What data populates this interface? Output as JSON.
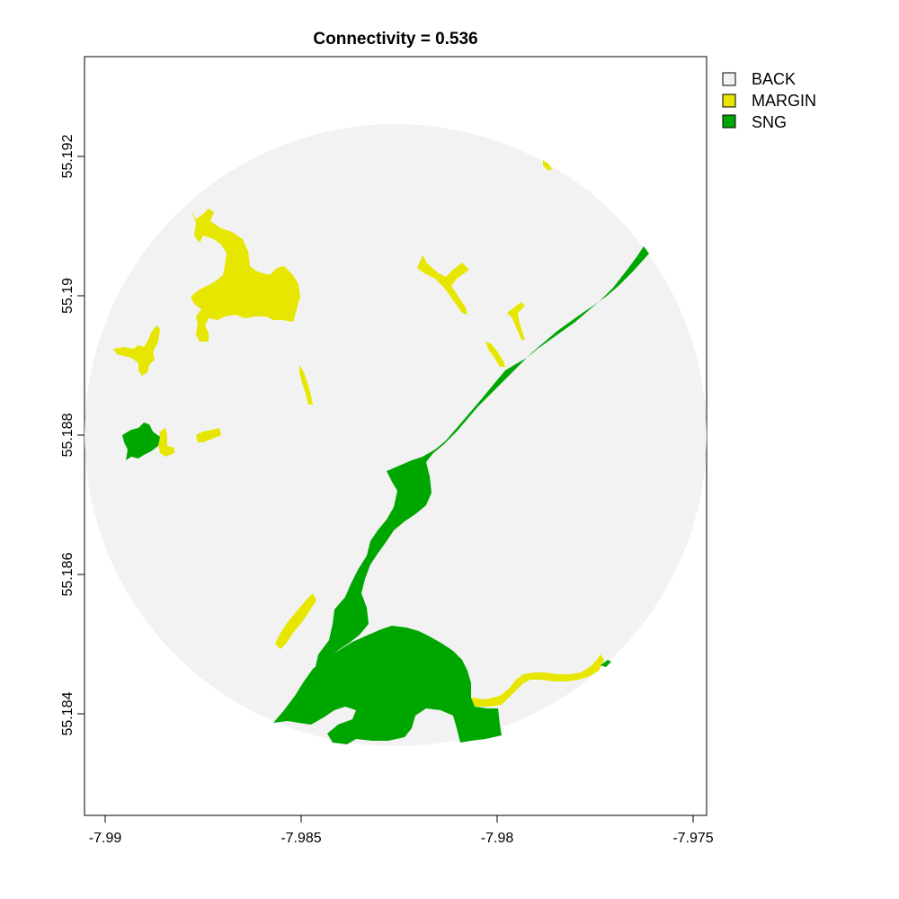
{
  "title": "Connectivity = 0.536",
  "axes": {
    "x_ticks": [
      "-7.99",
      "-7.985",
      "-7.98",
      "-7.975"
    ],
    "y_ticks": [
      "55.192",
      "55.19",
      "55.188",
      "55.186",
      "55.184"
    ]
  },
  "legend": {
    "placement": "outside-top-right",
    "items": [
      {
        "label": "BACK",
        "color": "#f2f2f2"
      },
      {
        "label": "MARGIN",
        "color": "#e6e600"
      },
      {
        "label": "SNG",
        "color": "#00a600"
      }
    ]
  },
  "colors": {
    "background_circle": "#f2f2f2",
    "margin": "#e6e600",
    "sng": "#00a600"
  }
}
